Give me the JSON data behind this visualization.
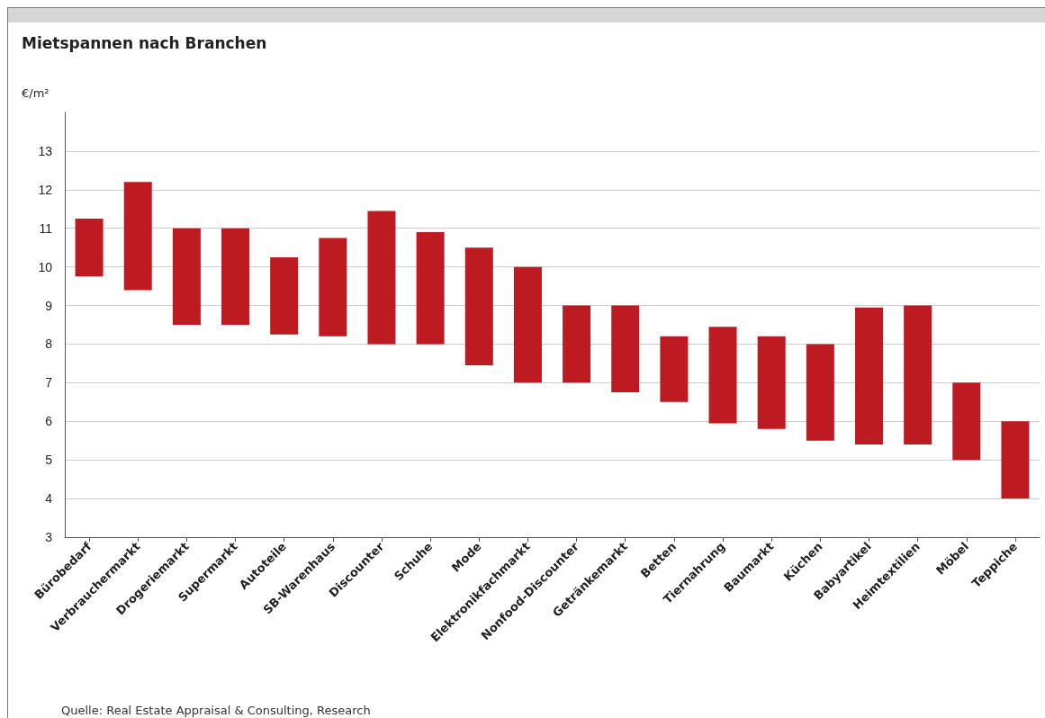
{
  "chart_data": {
    "type": "bar",
    "title": "Mietspannen nach Branchen",
    "ylabel": "€/m²",
    "categories": [
      "Bürobedarf",
      "Verbrauchermarkt",
      "Drogeriemarkt",
      "Supermarkt",
      "Autoteile",
      "SB-Warenhaus",
      "Discounter",
      "Schuhe",
      "Mode",
      "Elektronikfachmarkt",
      "Nonfood-Discounter",
      "Getränkemarkt",
      "Betten",
      "Tiernahrung",
      "Baumarkt",
      "Küchen",
      "Babyartikel",
      "Heimtextilien",
      "Möbel",
      "Teppiche"
    ],
    "base": [
      9.75,
      9.4,
      8.5,
      8.5,
      8.25,
      8.2,
      8,
      8,
      7.45,
      7,
      7,
      6.75,
      6.5,
      5.95,
      5.8,
      5.5,
      5.4,
      5.4,
      5,
      4
    ],
    "values": [
      1.5,
      2.8,
      2.5,
      2.5,
      2,
      2.55,
      3.45,
      2.9,
      3.05,
      3,
      2,
      2.25,
      1.7,
      2.5,
      2.4,
      2.5,
      3.55,
      3.6,
      2,
      2
    ],
    "color": "#be1a22",
    "ylim": [
      3,
      14
    ],
    "yticks": [
      3,
      4,
      5,
      6,
      7,
      8,
      9,
      10,
      11,
      12,
      13
    ],
    "grid": "y",
    "annotations": [
      "Quelle: Real Estate Appraisal & Consulting, Research"
    ]
  }
}
